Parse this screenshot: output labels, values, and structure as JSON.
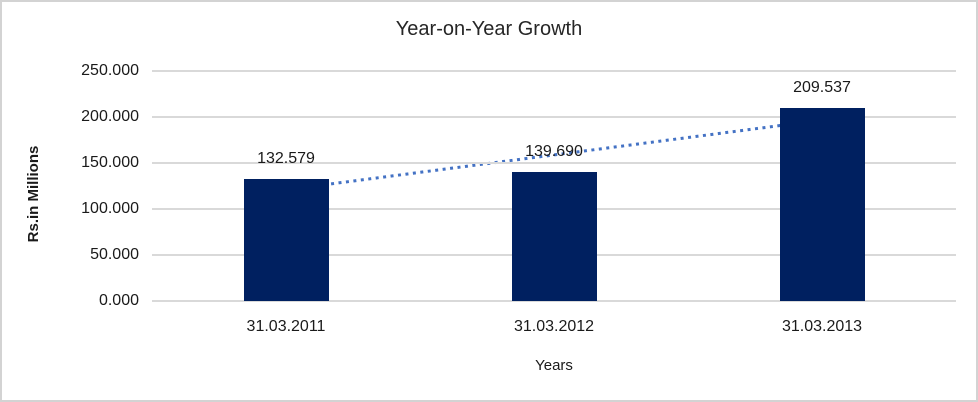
{
  "chart_data": {
    "type": "bar",
    "title": "Year-on-Year Growth",
    "xlabel": "Years",
    "ylabel": "Rs.in Millions",
    "categories": [
      "31.03.2011",
      "31.03.2012",
      "31.03.2013"
    ],
    "values": [
      132.579,
      139.69,
      209.537
    ],
    "data_labels": [
      "132.579",
      "139.690",
      "209.537"
    ],
    "ylim": [
      0,
      250
    ],
    "ytick_step": 50,
    "ytick_labels": [
      "0.000",
      "50.000",
      "100.000",
      "150.000",
      "200.000",
      "250.000"
    ],
    "grid": true,
    "legend": "none",
    "trendline": "linear-dotted",
    "colors": {
      "bar": "#002060",
      "trendline": "#4472c4",
      "gridline": "#d9d9d9",
      "frame_border": "#d3d3d3",
      "text": "#1a1a1a",
      "background": "#ffffff"
    }
  }
}
